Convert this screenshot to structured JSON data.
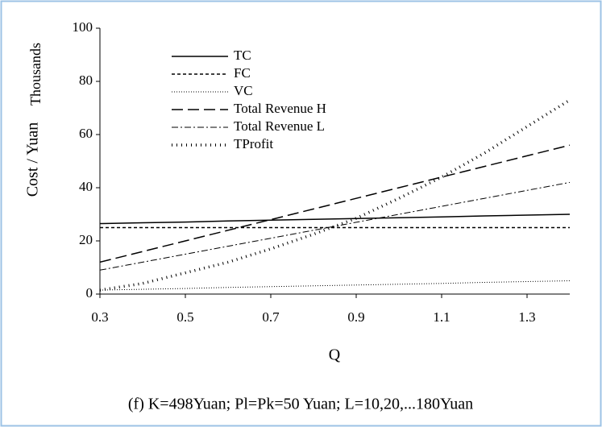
{
  "chart_data": {
    "type": "line",
    "y_label": "Cost / Yuan",
    "y_unit_label": "Thousands",
    "x_label": "Q",
    "caption": "(f) K=498Yuan; Pl=Pk=50 Yuan; L=10,20,...180Yuan",
    "x": [
      0.3,
      0.4,
      0.5,
      0.6,
      0.7,
      0.8,
      0.9,
      1.0,
      1.1,
      1.2,
      1.3,
      1.4
    ],
    "series": [
      {
        "name": "TC",
        "color": "#000000",
        "dash": "solid",
        "width": 1.5,
        "values": [
          26.5,
          26.8,
          27.1,
          27.5,
          27.8,
          28.1,
          28.4,
          28.7,
          29.0,
          29.4,
          29.7,
          30.0
        ]
      },
      {
        "name": "FC",
        "color": "#000000",
        "dash": "short-dash",
        "width": 1.5,
        "values": [
          25,
          25,
          25,
          25,
          25,
          25,
          25,
          25,
          25,
          25,
          25,
          25
        ]
      },
      {
        "name": "VC",
        "color": "#000000",
        "dash": "dot",
        "width": 1,
        "values": [
          1.5,
          1.8,
          2.1,
          2.5,
          2.8,
          3.1,
          3.4,
          3.7,
          4.0,
          4.4,
          4.7,
          5.0
        ]
      },
      {
        "name": "Total Revenue H",
        "color": "#000000",
        "dash": "long-dash",
        "width": 1.5,
        "values": [
          12,
          16,
          20,
          24,
          28,
          32,
          36,
          40,
          44,
          48,
          52,
          56
        ]
      },
      {
        "name": "Total Revenue L",
        "color": "#000000",
        "dash": "dash-dot",
        "width": 1,
        "values": [
          9,
          12,
          15,
          18,
          21,
          24,
          27,
          30,
          33,
          36,
          39,
          42
        ]
      },
      {
        "name": "TProfit",
        "color": "#000000",
        "dash": "heavy-dot",
        "width": 3.5,
        "values": [
          1.5,
          4,
          8,
          12,
          17,
          22.5,
          28.5,
          36,
          44,
          53,
          63,
          73
        ]
      }
    ],
    "xlim": [
      0.3,
      1.4
    ],
    "xticks": [
      0.3,
      0.5,
      0.7,
      0.9,
      1.1,
      1.3
    ],
    "ylim": [
      0,
      100
    ],
    "yticks": [
      0,
      20,
      40,
      60,
      80,
      100
    ],
    "legend": "upper-left",
    "grid": false
  }
}
